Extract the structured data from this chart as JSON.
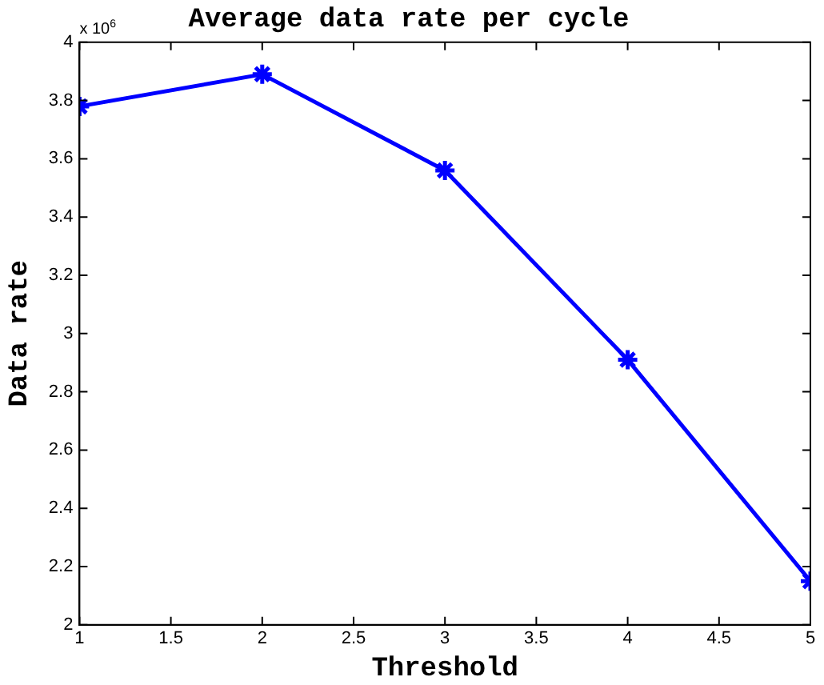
{
  "chart_data": {
    "type": "line",
    "title": "Average data rate per cycle",
    "xlabel": "Threshold",
    "ylabel": "Data rate",
    "annotations": [
      "x 10$^{6}$"
    ],
    "x": [
      1,
      2,
      3,
      4,
      5
    ],
    "series": [
      {
        "color": "#0000ff",
        "values": [
          3.78,
          3.89,
          3.56,
          2.91,
          2.15
        ]
      }
    ],
    "xlim": [
      1,
      5
    ],
    "xticks": [
      1,
      1.5,
      2,
      2.5,
      3,
      3.5,
      4,
      4.5,
      5
    ],
    "ylim": [
      2,
      4
    ],
    "yticks": [
      2,
      2.2,
      2.4,
      2.6,
      2.8,
      3,
      3.2,
      3.4,
      3.6,
      3.8,
      4
    ],
    "grid": false,
    "legend": false,
    "marker": "cross",
    "line_style": "solid"
  }
}
